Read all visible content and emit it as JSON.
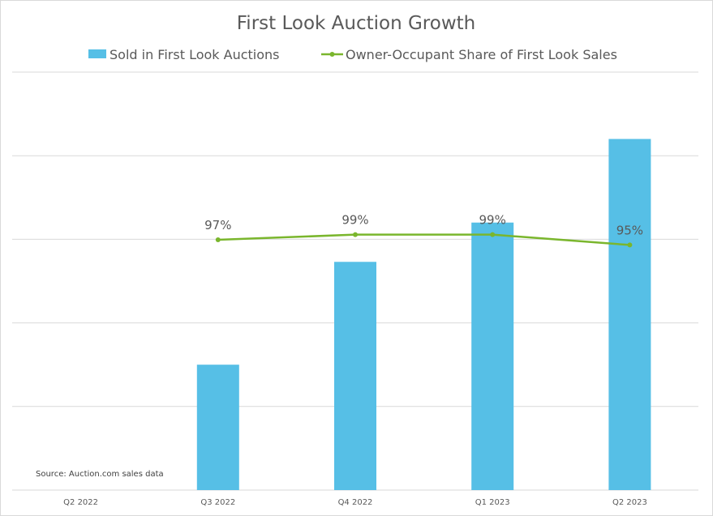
{
  "chart_data": {
    "type": "bar",
    "title": "First Look Auction Growth",
    "categories": [
      "Q2 2022",
      "Q3 2022",
      "Q4 2022",
      "Q1 2023",
      "Q2 2023"
    ],
    "series": [
      {
        "name": "Sold in First Look Auctions",
        "kind": "bar",
        "axis": "primary",
        "values": [
          0,
          1.5,
          2.73,
          3.2,
          4.2
        ]
      },
      {
        "name": "Owner-Occupant Share of First Look Sales",
        "kind": "line",
        "axis": "secondary",
        "values": [
          null,
          0.97,
          0.99,
          0.99,
          0.95
        ],
        "labels": [
          "",
          "97%",
          "99%",
          "99%",
          "95%"
        ]
      }
    ],
    "ylim": [
      0,
      5
    ],
    "y2lim": [
      0,
      1.62
    ],
    "grid": true,
    "legend_position": "top",
    "xlabel": "",
    "ylabel": "",
    "colors": {
      "bar": "#56bfe6",
      "line": "#7ab62d",
      "grid": "#d9d9d9",
      "text": "#595959"
    },
    "source": "Source: Auction.com sales data"
  }
}
